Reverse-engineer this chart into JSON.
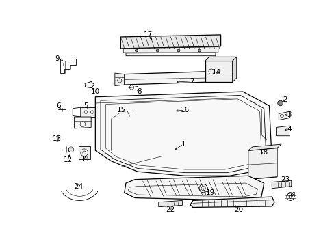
{
  "bg_color": "#ffffff",
  "line_color": "#000000",
  "label_fontsize": 7.5,
  "lw_main": 0.9,
  "lw_detail": 0.6,
  "lw_thin": 0.4
}
